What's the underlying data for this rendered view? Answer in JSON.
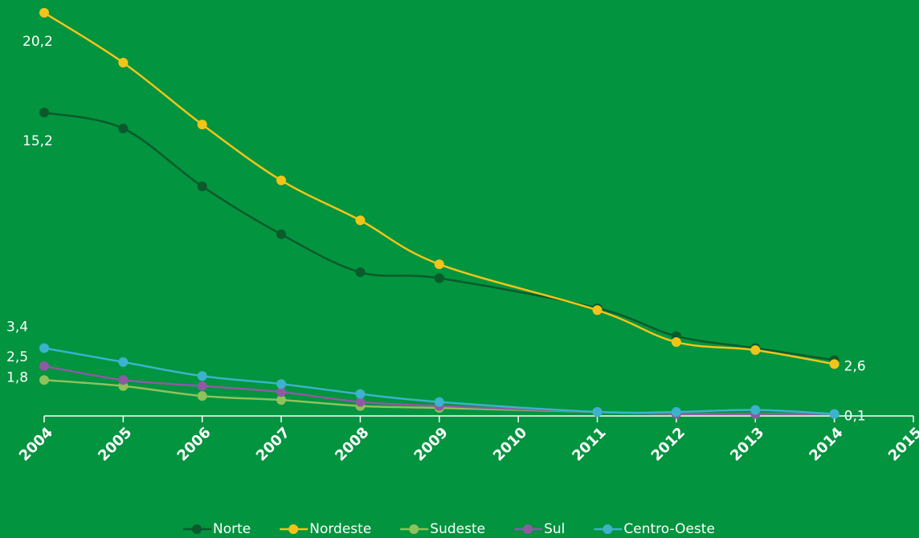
{
  "chart_data": {
    "type": "line",
    "x": [
      2004,
      2005,
      2006,
      2007,
      2008,
      2009,
      2011,
      2012,
      2013,
      2014
    ],
    "xlim": [
      2004,
      2015
    ],
    "xticks": [
      2004,
      2005,
      2006,
      2007,
      2008,
      2009,
      2010,
      2011,
      2012,
      2013,
      2014,
      2015
    ],
    "ylim": [
      0,
      21
    ],
    "series": [
      {
        "name": "Norte",
        "color": "#0b5a2b",
        "values": [
          15.2,
          14.4,
          11.5,
          9.1,
          7.2,
          6.9,
          5.4,
          4.0,
          3.4,
          2.8
        ],
        "value_labels": [
          "15,2",
          null,
          null,
          null,
          null,
          null,
          null,
          null,
          null,
          null
        ]
      },
      {
        "name": "Nordeste",
        "color": "#f2c41a",
        "values": [
          20.2,
          17.7,
          14.6,
          11.8,
          9.8,
          7.6,
          5.3,
          3.7,
          3.3,
          2.6
        ],
        "value_labels": [
          "20,2",
          null,
          null,
          null,
          null,
          null,
          null,
          null,
          null,
          "2,6"
        ]
      },
      {
        "name": "Sudeste",
        "color": "#8fc25a",
        "values": [
          1.8,
          1.5,
          1.0,
          0.8,
          0.5,
          0.4,
          0.2,
          0.1,
          0.1,
          0.1
        ],
        "value_labels": [
          "1,8",
          null,
          null,
          null,
          null,
          null,
          null,
          null,
          null,
          null
        ]
      },
      {
        "name": "Sul",
        "color": "#8e5aa2",
        "values": [
          2.5,
          1.8,
          1.5,
          1.2,
          0.7,
          0.5,
          0.2,
          0.1,
          0.1,
          0.1
        ],
        "value_labels": [
          "2,5",
          null,
          null,
          null,
          null,
          null,
          null,
          null,
          null,
          null
        ]
      },
      {
        "name": "Centro-Oeste",
        "color": "#3cb2cc",
        "values": [
          3.4,
          2.7,
          2.0,
          1.6,
          1.1,
          0.7,
          0.2,
          0.2,
          0.3,
          0.1
        ],
        "value_labels": [
          "3,4",
          null,
          null,
          null,
          null,
          null,
          null,
          null,
          null,
          "0,1"
        ]
      }
    ]
  }
}
